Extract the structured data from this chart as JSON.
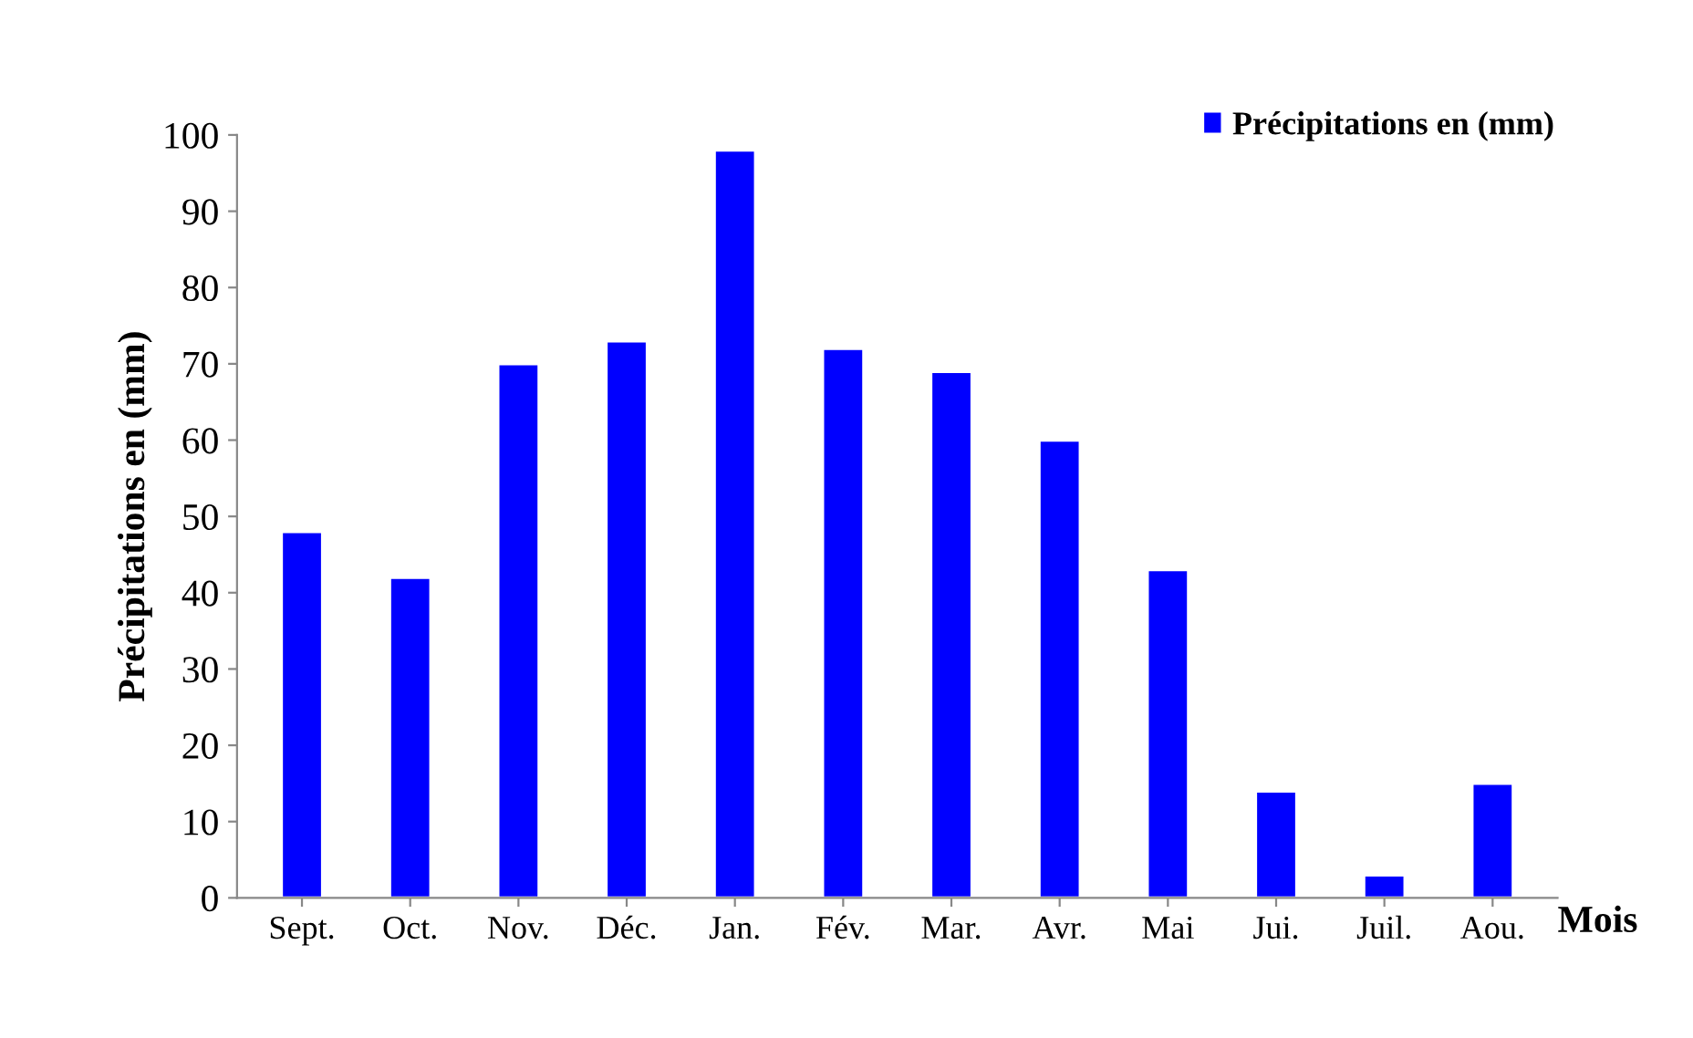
{
  "chart_data": {
    "type": "bar",
    "categories": [
      "Sept.",
      "Oct.",
      "Nov.",
      "Déc.",
      "Jan.",
      "Fév.",
      "Mar.",
      "Avr.",
      "Mai",
      "Jui.",
      "Juil.",
      "Aou."
    ],
    "series": [
      {
        "name": "Précipitations en (mm)",
        "color": "#0000ff",
        "values": [
          48,
          42,
          70,
          73,
          98,
          72,
          69,
          60,
          43,
          14,
          3,
          15
        ]
      }
    ],
    "xlabel": "Mois",
    "ylabel": "Précipitations en (mm)",
    "ylim": [
      0,
      100
    ],
    "yticks": [
      0,
      10,
      20,
      30,
      40,
      50,
      60,
      70,
      80,
      90,
      100
    ],
    "grid": false,
    "legend": "top right"
  }
}
